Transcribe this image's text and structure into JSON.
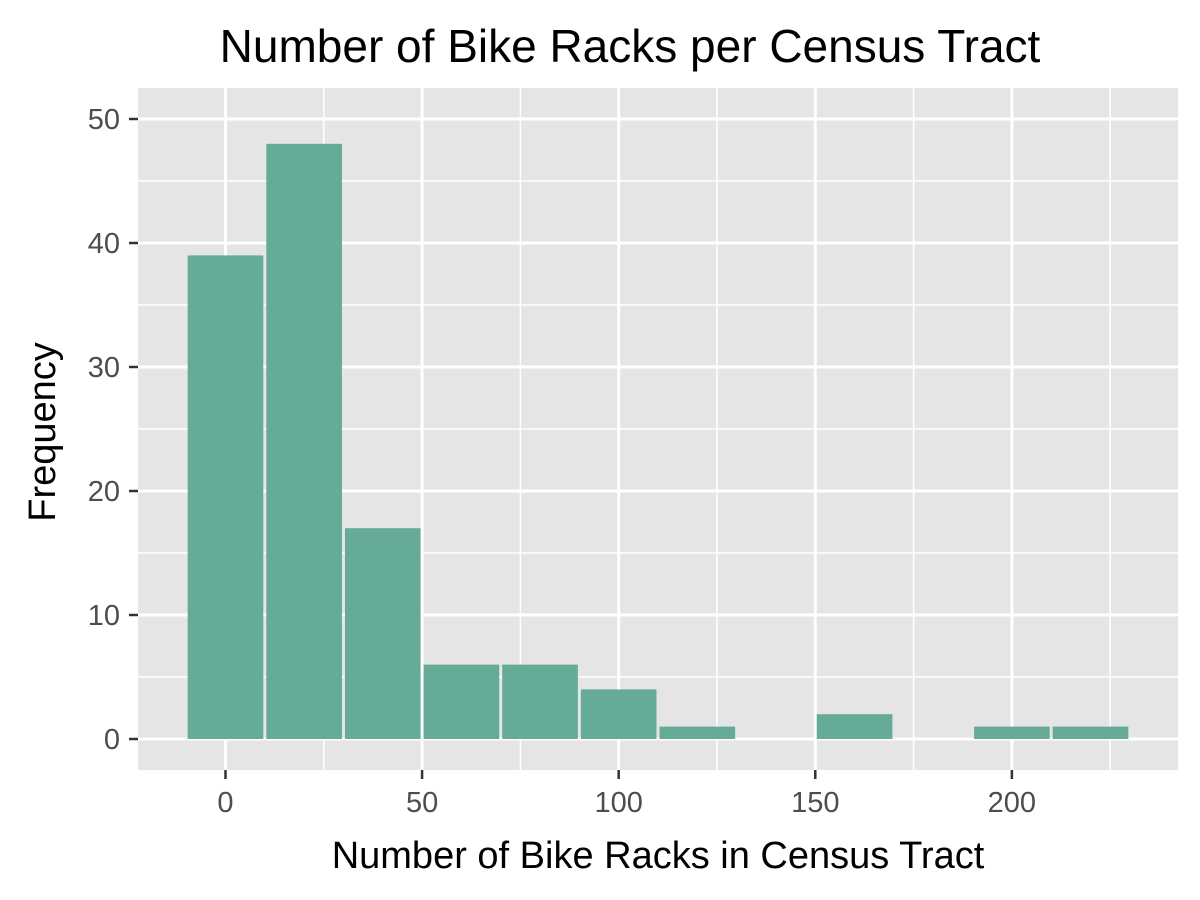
{
  "chart_data": {
    "type": "bar",
    "title": "Number of Bike Racks per Census Tract",
    "xlabel": "Number of Bike Racks in Census Tract",
    "ylabel": "Frequency",
    "bin_width": 20,
    "bins": [
      {
        "x_start": -10,
        "x_end": 10,
        "value": 39
      },
      {
        "x_start": 10,
        "x_end": 30,
        "value": 48
      },
      {
        "x_start": 30,
        "x_end": 50,
        "value": 17
      },
      {
        "x_start": 50,
        "x_end": 70,
        "value": 6
      },
      {
        "x_start": 70,
        "x_end": 90,
        "value": 6
      },
      {
        "x_start": 90,
        "x_end": 110,
        "value": 4
      },
      {
        "x_start": 110,
        "x_end": 130,
        "value": 1
      },
      {
        "x_start": 130,
        "x_end": 150,
        "value": 0
      },
      {
        "x_start": 150,
        "x_end": 170,
        "value": 2
      },
      {
        "x_start": 170,
        "x_end": 190,
        "value": 0
      },
      {
        "x_start": 190,
        "x_end": 210,
        "value": 1
      },
      {
        "x_start": 210,
        "x_end": 230,
        "value": 1
      }
    ],
    "x_ticks": [
      0,
      50,
      100,
      150,
      200
    ],
    "y_ticks": [
      0,
      10,
      20,
      30,
      40,
      50
    ],
    "xlim": [
      -22.25,
      242.25
    ],
    "ylim": [
      -2.5,
      52.5
    ],
    "grid": true,
    "colors": {
      "bar_fill": "#66aa98",
      "panel_background": "#e5e5e5",
      "grid": "#ffffff"
    }
  }
}
